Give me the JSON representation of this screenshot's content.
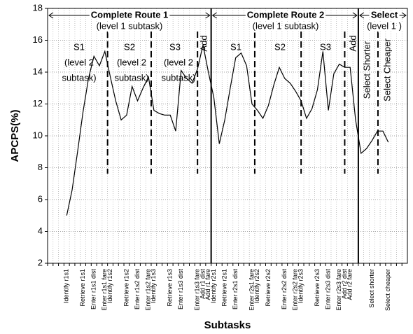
{
  "chart_data": {
    "type": "line",
    "xlabel": "Subtasks",
    "ylabel": "APCPS(%)",
    "categories": [
      null,
      null,
      null,
      "Identify r1s1",
      null,
      null,
      "Retrieve r1s1",
      null,
      "Enter r1s1 dist",
      null,
      "Enter r1s1 fare",
      "Identify r1s2",
      null,
      null,
      "Retrieve r1s2",
      null,
      "Enter r1s2 dist",
      null,
      "Enter r1s2 fare",
      "Identify r1s3",
      null,
      null,
      "Retrieve r1s3",
      null,
      "Enter r1s3 dist",
      null,
      null,
      "Enter r1s3 fare",
      "Add r1 dist",
      "Add r1 fare",
      "Identify r2s1",
      null,
      "Retrieve r2s1",
      null,
      "Enter r2s1 dist",
      null,
      null,
      "Enter r2s1 fare",
      "Identify r2s2",
      null,
      "Retrieve r2s2",
      null,
      null,
      "Enter r2s2 dist",
      null,
      "Enter r2s2 fare",
      "Identify r2s3",
      null,
      null,
      "Retrieve r2s3",
      null,
      "Enter r2s3 dist",
      null,
      "Enter r2s3 fare",
      "Add r2 dist",
      "Add r2 fare",
      null,
      null,
      null,
      "Select shorter",
      null,
      null,
      "Select cheaper",
      null,
      null,
      null
    ],
    "values": [
      null,
      null,
      null,
      5.0,
      6.6,
      9.0,
      11.5,
      13.6,
      15.0,
      14.4,
      15.3,
      13.7,
      12.2,
      11.0,
      11.3,
      13.1,
      12.2,
      13.0,
      13.7,
      11.6,
      11.4,
      11.3,
      11.3,
      10.3,
      14.1,
      13.6,
      13.3,
      14.2,
      15.7,
      14.0,
      12.4,
      9.5,
      11.0,
      13.0,
      14.9,
      15.2,
      14.4,
      12.0,
      11.6,
      11.1,
      11.9,
      13.2,
      14.3,
      13.6,
      13.3,
      12.8,
      12.2,
      11.1,
      11.7,
      12.9,
      15.3,
      11.6,
      13.9,
      14.5,
      14.3,
      14.3,
      11.0,
      8.9,
      9.2,
      9.7,
      10.3,
      10.3,
      9.6,
      null,
      null,
      null
    ],
    "color": "#000000",
    "ylim": [
      2,
      18
    ],
    "yticks": [
      2,
      4,
      6,
      8,
      10,
      12,
      14,
      16,
      18
    ],
    "grid": true,
    "annotations": [
      "Complete Route 1",
      "(level 1 subtask)",
      "Complete Route 2",
      "(level 1 subtask)",
      "Select",
      "(level 1 )",
      "S1",
      "(level 2",
      "subtask)",
      "S2",
      "(level 2",
      "subtask)",
      "S3",
      "(level 2",
      "subtask)",
      "Add",
      "S1",
      "S2",
      "S3",
      "Add",
      "Select Shorter",
      "Select Cheaper"
    ]
  }
}
